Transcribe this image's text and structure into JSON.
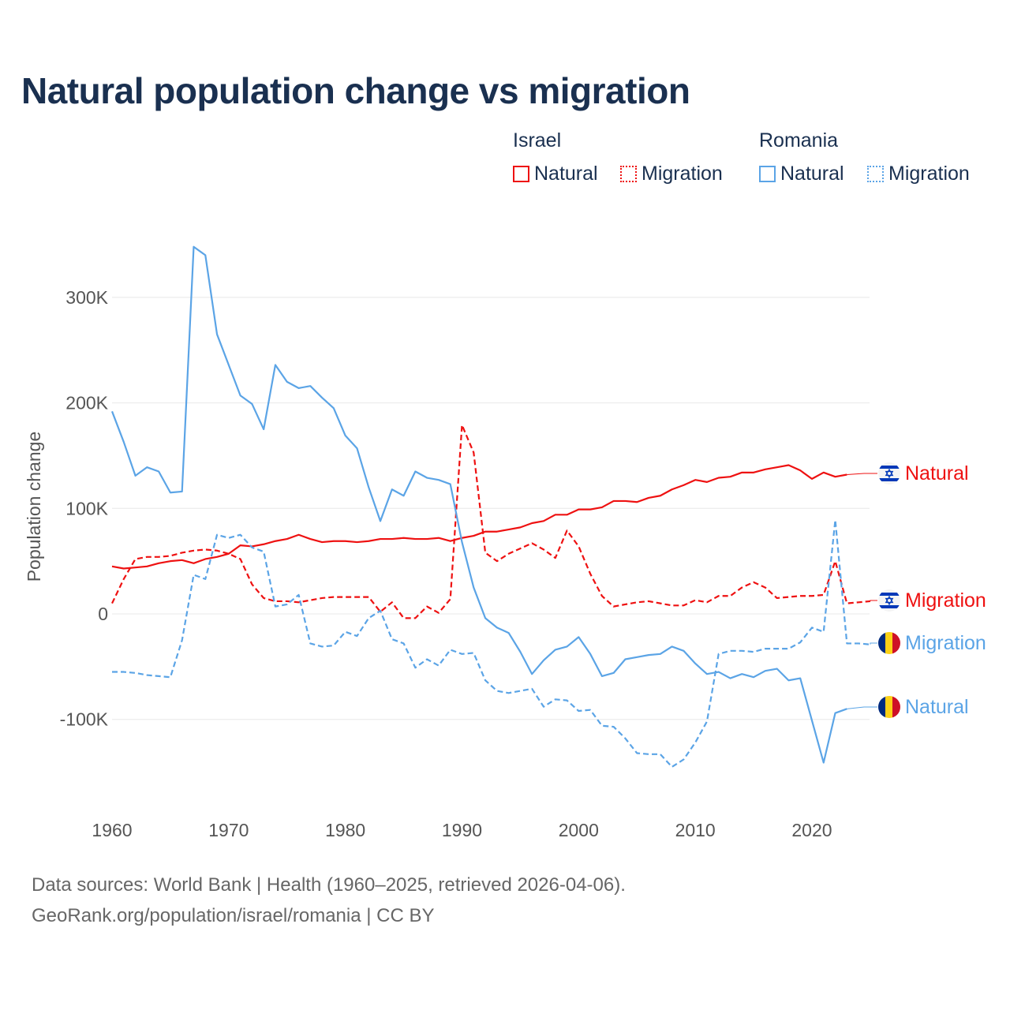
{
  "title": "Natural population change vs migration",
  "legend": {
    "groups": [
      {
        "name": "Israel",
        "items": [
          "Natural",
          "Migration"
        ],
        "color": "#ee1111"
      },
      {
        "name": "Romania",
        "items": [
          "Natural",
          "Migration"
        ],
        "color": "#5ba4e6"
      }
    ]
  },
  "footer": {
    "line1": "Data sources: World Bank | Health (1960–2025, retrieved 2026-04-06).",
    "line2": "GeoRank.org/population/israel/romania | CC BY"
  },
  "chart_data": {
    "type": "line",
    "title": "Natural population change vs migration",
    "xlabel": "",
    "ylabel": "Population change",
    "xlim": [
      1960,
      2025
    ],
    "ylim": [
      -160000,
      360000
    ],
    "x_ticks": [
      "1960",
      "1970",
      "1980",
      "1990",
      "2000",
      "2010",
      "2020"
    ],
    "y_ticks": [
      {
        "value": -100000,
        "label": "-100K"
      },
      {
        "value": 0,
        "label": "0"
      },
      {
        "value": 100000,
        "label": "100K"
      },
      {
        "value": 200000,
        "label": "200K"
      },
      {
        "value": 300000,
        "label": "300K"
      }
    ],
    "grid": true,
    "series": [
      {
        "name": "Israel Natural",
        "label": "Natural",
        "country": "israel",
        "color": "#ee1111",
        "dashed": false,
        "start": 1960,
        "values_k": [
          45,
          43,
          44,
          45,
          48,
          50,
          51,
          48,
          52,
          54,
          57,
          65,
          64,
          66,
          69,
          71,
          75,
          71,
          68,
          69,
          69,
          68,
          69,
          71,
          71,
          72,
          71,
          71,
          72,
          69,
          72,
          74,
          78,
          78,
          80,
          82,
          86,
          88,
          94,
          94,
          99,
          99,
          101,
          107,
          107,
          106,
          110,
          112,
          118,
          122,
          127,
          125,
          129,
          130,
          134,
          134,
          137,
          139,
          141,
          136,
          128,
          134,
          130,
          132
        ]
      },
      {
        "name": "Israel Migration",
        "label": "Migration",
        "country": "israel",
        "color": "#ee1111",
        "dashed": true,
        "start": 1960,
        "values_k": [
          10,
          33,
          52,
          54,
          54,
          55,
          58,
          60,
          61,
          60,
          57,
          52,
          28,
          15,
          12,
          12,
          11,
          13,
          15,
          16,
          16,
          16,
          16,
          2,
          11,
          -4,
          -4,
          7,
          1,
          14,
          179,
          153,
          58,
          50,
          57,
          62,
          67,
          61,
          53,
          79,
          64,
          38,
          17,
          7,
          9,
          11,
          12,
          10,
          8,
          8,
          13,
          11,
          17,
          17,
          25,
          30,
          25,
          15,
          16,
          17,
          17,
          18,
          50,
          10,
          11,
          12
        ]
      },
      {
        "name": "Romania Migration",
        "label": "Migration",
        "country": "romania",
        "color": "#5ba4e6",
        "dashed": true,
        "start": 1960,
        "values_k": [
          -55,
          -55,
          -56,
          -58,
          -59,
          -60,
          -25,
          37,
          33,
          75,
          72,
          75,
          63,
          59,
          7,
          9,
          18,
          -28,
          -31,
          -30,
          -17,
          -21,
          -4,
          3,
          -24,
          -28,
          -51,
          -43,
          -49,
          -34,
          -38,
          -37,
          -63,
          -73,
          -75,
          -73,
          -71,
          -88,
          -81,
          -82,
          -92,
          -91,
          -106,
          -107,
          -118,
          -132,
          -133,
          -133,
          -145,
          -138,
          -122,
          -102,
          -38,
          -35,
          -35,
          -36,
          -33,
          -33,
          -33,
          -27,
          -13,
          -17,
          89,
          -28,
          -28,
          -29
        ]
      },
      {
        "name": "Romania Natural",
        "label": "Natural",
        "country": "romania",
        "color": "#5ba4e6",
        "dashed": false,
        "start": 1960,
        "values_k": [
          192,
          163,
          131,
          139,
          135,
          115,
          116,
          348,
          340,
          265,
          236,
          207,
          199,
          175,
          236,
          220,
          214,
          216,
          205,
          195,
          169,
          157,
          120,
          88,
          118,
          112,
          135,
          129,
          127,
          123,
          68,
          25,
          -4,
          -13,
          -18,
          -36,
          -57,
          -44,
          -34,
          -31,
          -22,
          -38,
          -59,
          -56,
          -43,
          -41,
          -39,
          -38,
          -31,
          -35,
          -47,
          -57,
          -55,
          -61,
          -57,
          -60,
          -54,
          -52,
          -63,
          -61,
          -101,
          -141,
          -94,
          -90
        ]
      }
    ]
  }
}
